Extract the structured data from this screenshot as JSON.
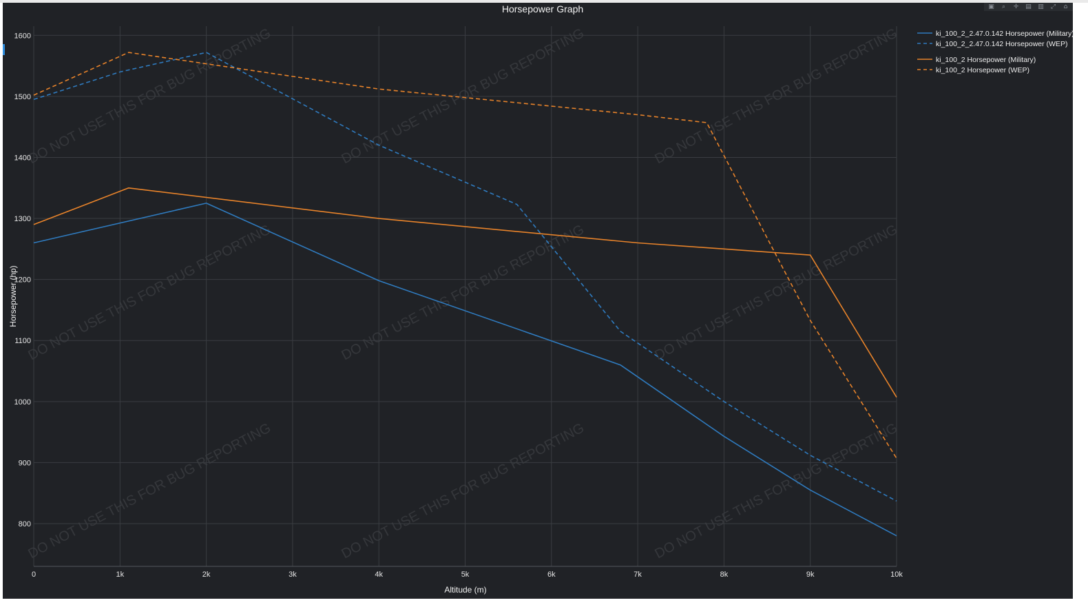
{
  "toolbar": {
    "icons": [
      "camera-icon",
      "zoom-icon",
      "pan-icon",
      "zoom-in-icon",
      "zoom-out-icon",
      "autoscale-icon",
      "reset-axes-icon"
    ]
  },
  "watermark_text": "DO NOT USE THIS FOR BUG REPORTING",
  "chart_data": {
    "type": "line",
    "title": "Horsepower Graph",
    "xlabel": "Altitude (m)",
    "ylabel": "Horsepower (hp)",
    "xlim": [
      0,
      10000
    ],
    "ylim": [
      730,
      1615
    ],
    "x_ticks": [
      0,
      1000,
      2000,
      3000,
      4000,
      5000,
      6000,
      7000,
      8000,
      9000,
      10000
    ],
    "x_tick_labels": [
      "0",
      "1k",
      "2k",
      "3k",
      "4k",
      "5k",
      "6k",
      "7k",
      "8k",
      "9k",
      "10k"
    ],
    "y_ticks": [
      800,
      900,
      1000,
      1100,
      1200,
      1300,
      1400,
      1500,
      1600
    ],
    "y_tick_labels": [
      "800",
      "900",
      "1000",
      "1100",
      "1200",
      "1300",
      "1400",
      "1500",
      "1600"
    ],
    "grid": true,
    "legend_position": "top-right",
    "colors": {
      "blue": "#2f7bbf",
      "orange": "#e8832a",
      "background": "#202226",
      "grid": "#3a3d42"
    },
    "series": [
      {
        "name": "ki_100_2_2.47.0.142 Horsepower (Military)",
        "color": "#2f7bbf",
        "dash": false,
        "x": [
          0,
          2000,
          4000,
          6800,
          8000,
          9000,
          10000
        ],
        "y": [
          1260,
          1325,
          1198,
          1060,
          943,
          855,
          780
        ]
      },
      {
        "name": "ki_100_2_2.47.0.142 Horsepower (WEP)",
        "color": "#2f7bbf",
        "dash": true,
        "x": [
          0,
          1000,
          2000,
          4000,
          5600,
          6800,
          8000,
          9000,
          10000
        ],
        "y": [
          1495,
          1540,
          1572,
          1420,
          1323,
          1115,
          1000,
          912,
          837
        ]
      },
      {
        "name": "ki_100_2 Horsepower (Military)",
        "color": "#e8832a",
        "dash": false,
        "x": [
          0,
          1100,
          4000,
          7000,
          9000,
          10000
        ],
        "y": [
          1290,
          1350,
          1300,
          1260,
          1240,
          1007
        ]
      },
      {
        "name": "ki_100_2 Horsepower (WEP)",
        "color": "#e8832a",
        "dash": true,
        "x": [
          0,
          1100,
          4000,
          7000,
          7800,
          9000,
          10000
        ],
        "y": [
          1502,
          1572,
          1512,
          1470,
          1457,
          1133,
          907
        ]
      }
    ]
  }
}
